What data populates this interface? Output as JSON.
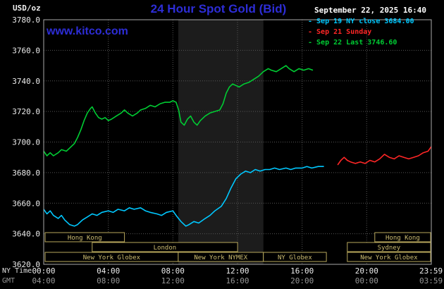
{
  "header": {
    "units_label": "USD/oz",
    "title": "24 Hour Spot Gold (Bid)",
    "datetime": "September 22, 2025 16:40"
  },
  "watermark": "www.kitco.com",
  "legend": [
    {
      "marker": "-",
      "label": "Sep 19 NY close 3684.00",
      "color": "#00c8ff"
    },
    {
      "marker": "-",
      "label": "Sep 21 Sunday",
      "color": "#ff2626"
    },
    {
      "marker": "-",
      "label": "Sep 22 Last 3746.60",
      "color": "#00cc33"
    }
  ],
  "axis": {
    "ny_label": "NY Time",
    "gmt_label": "GMT",
    "tick_hours": [
      0,
      4,
      8,
      12,
      16,
      20,
      23.983
    ],
    "ny_ticks": [
      "00:00",
      "04:00",
      "08:00",
      "12:00",
      "16:00",
      "20:00",
      "23:59"
    ],
    "gmt_ticks": [
      "04:00",
      "08:00",
      "12:00",
      "16:00",
      "20:00",
      "00:00",
      "03:59"
    ]
  },
  "colors": {
    "background": "#000000",
    "title_blue": "#2d2dd6",
    "grid": "#565656",
    "border": "#aaaaaa",
    "band": "#1c1c1c",
    "session": "#b7a75c",
    "axis_text": "#ededed",
    "gmt_text": "#979797"
  },
  "chart_data": {
    "type": "line",
    "title": "24 Hour Spot Gold (Bid)",
    "ylabel": "USD/oz",
    "ylim": [
      3620,
      3780
    ],
    "yticks": [
      3780,
      3760,
      3740,
      3720,
      3700,
      3680,
      3660,
      3640,
      3620
    ],
    "xlim_hours": [
      0,
      24
    ],
    "vgrid_hours": [
      4,
      8,
      12,
      16,
      20
    ],
    "grid": true,
    "x_unit": "NY time (hours)",
    "shaded_region_hours": [
      8.33,
      13.6
    ],
    "series": [
      {
        "id": "sep19-ny-close",
        "name": "Sep 19 NY close",
        "close_value": 3684.0,
        "color": "#00c8ff",
        "points": [
          [
            0,
            3656
          ],
          [
            0.2,
            3653
          ],
          [
            0.4,
            3655
          ],
          [
            0.6,
            3652
          ],
          [
            0.9,
            3650
          ],
          [
            1.1,
            3652
          ],
          [
            1.3,
            3649
          ],
          [
            1.6,
            3646
          ],
          [
            1.9,
            3645
          ],
          [
            2.1,
            3646
          ],
          [
            2.4,
            3649
          ],
          [
            2.7,
            3651
          ],
          [
            3.0,
            3653
          ],
          [
            3.3,
            3652
          ],
          [
            3.6,
            3654
          ],
          [
            4.0,
            3655
          ],
          [
            4.3,
            3654
          ],
          [
            4.6,
            3656
          ],
          [
            5.0,
            3655
          ],
          [
            5.3,
            3657
          ],
          [
            5.6,
            3656
          ],
          [
            6.0,
            3657
          ],
          [
            6.3,
            3655
          ],
          [
            6.6,
            3654
          ],
          [
            7.0,
            3653
          ],
          [
            7.3,
            3652
          ],
          [
            7.6,
            3654
          ],
          [
            8.0,
            3655
          ],
          [
            8.2,
            3652
          ],
          [
            8.5,
            3648
          ],
          [
            8.8,
            3645
          ],
          [
            9.0,
            3646
          ],
          [
            9.3,
            3648
          ],
          [
            9.6,
            3647
          ],
          [
            10.0,
            3650
          ],
          [
            10.3,
            3652
          ],
          [
            10.6,
            3655
          ],
          [
            11.0,
            3658
          ],
          [
            11.3,
            3663
          ],
          [
            11.6,
            3670
          ],
          [
            11.9,
            3676
          ],
          [
            12.2,
            3679
          ],
          [
            12.5,
            3681
          ],
          [
            12.8,
            3680
          ],
          [
            13.1,
            3682
          ],
          [
            13.4,
            3681
          ],
          [
            13.7,
            3682
          ],
          [
            14.0,
            3682
          ],
          [
            14.3,
            3683
          ],
          [
            14.6,
            3682
          ],
          [
            15.0,
            3683
          ],
          [
            15.3,
            3682
          ],
          [
            15.6,
            3683
          ],
          [
            16.0,
            3683
          ],
          [
            16.3,
            3684
          ],
          [
            16.6,
            3683
          ],
          [
            17.0,
            3684
          ],
          [
            17.35,
            3684
          ]
        ]
      },
      {
        "id": "sep21-sunday",
        "name": "Sep 21 Sunday",
        "color": "#ff2626",
        "points": [
          [
            18.2,
            3685
          ],
          [
            18.4,
            3688
          ],
          [
            18.6,
            3690
          ],
          [
            18.8,
            3688
          ],
          [
            19.0,
            3687
          ],
          [
            19.3,
            3686
          ],
          [
            19.6,
            3687
          ],
          [
            19.9,
            3686
          ],
          [
            20.2,
            3688
          ],
          [
            20.5,
            3687
          ],
          [
            20.8,
            3689
          ],
          [
            21.1,
            3692
          ],
          [
            21.4,
            3690
          ],
          [
            21.7,
            3689
          ],
          [
            22.0,
            3691
          ],
          [
            22.3,
            3690
          ],
          [
            22.6,
            3689
          ],
          [
            22.9,
            3690
          ],
          [
            23.2,
            3691
          ],
          [
            23.5,
            3693
          ],
          [
            23.8,
            3694
          ],
          [
            24.0,
            3697
          ]
        ]
      },
      {
        "id": "sep22-last",
        "name": "Sep 22 Last",
        "last_value": 3746.6,
        "color": "#00cc33",
        "points": [
          [
            0,
            3694
          ],
          [
            0.2,
            3691
          ],
          [
            0.4,
            3693
          ],
          [
            0.6,
            3691
          ],
          [
            0.9,
            3693
          ],
          [
            1.1,
            3695
          ],
          [
            1.4,
            3694
          ],
          [
            1.6,
            3696
          ],
          [
            1.9,
            3699
          ],
          [
            2.1,
            3703
          ],
          [
            2.3,
            3708
          ],
          [
            2.5,
            3714
          ],
          [
            2.7,
            3719
          ],
          [
            2.9,
            3722
          ],
          [
            3.0,
            3723
          ],
          [
            3.2,
            3719
          ],
          [
            3.4,
            3716
          ],
          [
            3.6,
            3715
          ],
          [
            3.8,
            3716
          ],
          [
            4.0,
            3714
          ],
          [
            4.2,
            3715
          ],
          [
            4.5,
            3717
          ],
          [
            4.8,
            3719
          ],
          [
            5.0,
            3721
          ],
          [
            5.2,
            3719
          ],
          [
            5.5,
            3717
          ],
          [
            5.8,
            3719
          ],
          [
            6.0,
            3721
          ],
          [
            6.3,
            3722
          ],
          [
            6.6,
            3724
          ],
          [
            6.9,
            3723
          ],
          [
            7.2,
            3725
          ],
          [
            7.5,
            3726
          ],
          [
            7.8,
            3726
          ],
          [
            8.0,
            3727
          ],
          [
            8.2,
            3726
          ],
          [
            8.35,
            3721
          ],
          [
            8.5,
            3713
          ],
          [
            8.7,
            3711
          ],
          [
            8.9,
            3715
          ],
          [
            9.1,
            3717
          ],
          [
            9.3,
            3713
          ],
          [
            9.5,
            3711
          ],
          [
            9.7,
            3714
          ],
          [
            10.0,
            3717
          ],
          [
            10.3,
            3719
          ],
          [
            10.6,
            3720
          ],
          [
            10.9,
            3721
          ],
          [
            11.1,
            3725
          ],
          [
            11.3,
            3732
          ],
          [
            11.5,
            3736
          ],
          [
            11.7,
            3738
          ],
          [
            11.9,
            3737
          ],
          [
            12.1,
            3736
          ],
          [
            12.4,
            3738
          ],
          [
            12.7,
            3739
          ],
          [
            13.0,
            3741
          ],
          [
            13.3,
            3743
          ],
          [
            13.6,
            3746
          ],
          [
            13.9,
            3748
          ],
          [
            14.1,
            3747
          ],
          [
            14.4,
            3746
          ],
          [
            14.7,
            3748
          ],
          [
            15.0,
            3750
          ],
          [
            15.2,
            3748
          ],
          [
            15.5,
            3746
          ],
          [
            15.8,
            3748
          ],
          [
            16.1,
            3747
          ],
          [
            16.4,
            3748
          ],
          [
            16.67,
            3747
          ]
        ]
      }
    ],
    "sessions": [
      {
        "row": 0,
        "label": "Hong Kong",
        "start": 0,
        "end": 5
      },
      {
        "row": 0,
        "label": "Hong Kong",
        "start": 20.5,
        "end": 24
      },
      {
        "row": 1,
        "label": "London",
        "start": 3,
        "end": 12
      },
      {
        "row": 1,
        "label": "Sydney",
        "start": 18.8,
        "end": 24
      },
      {
        "row": 2,
        "label": "New York Globex",
        "start": 0,
        "end": 8.33
      },
      {
        "row": 2,
        "label": "New York NYMEX",
        "start": 8.33,
        "end": 13.6
      },
      {
        "row": 2,
        "label": "NY Globex",
        "start": 13.6,
        "end": 17.5
      },
      {
        "row": 2,
        "label": "New York Globex",
        "start": 18.8,
        "end": 24
      }
    ]
  }
}
